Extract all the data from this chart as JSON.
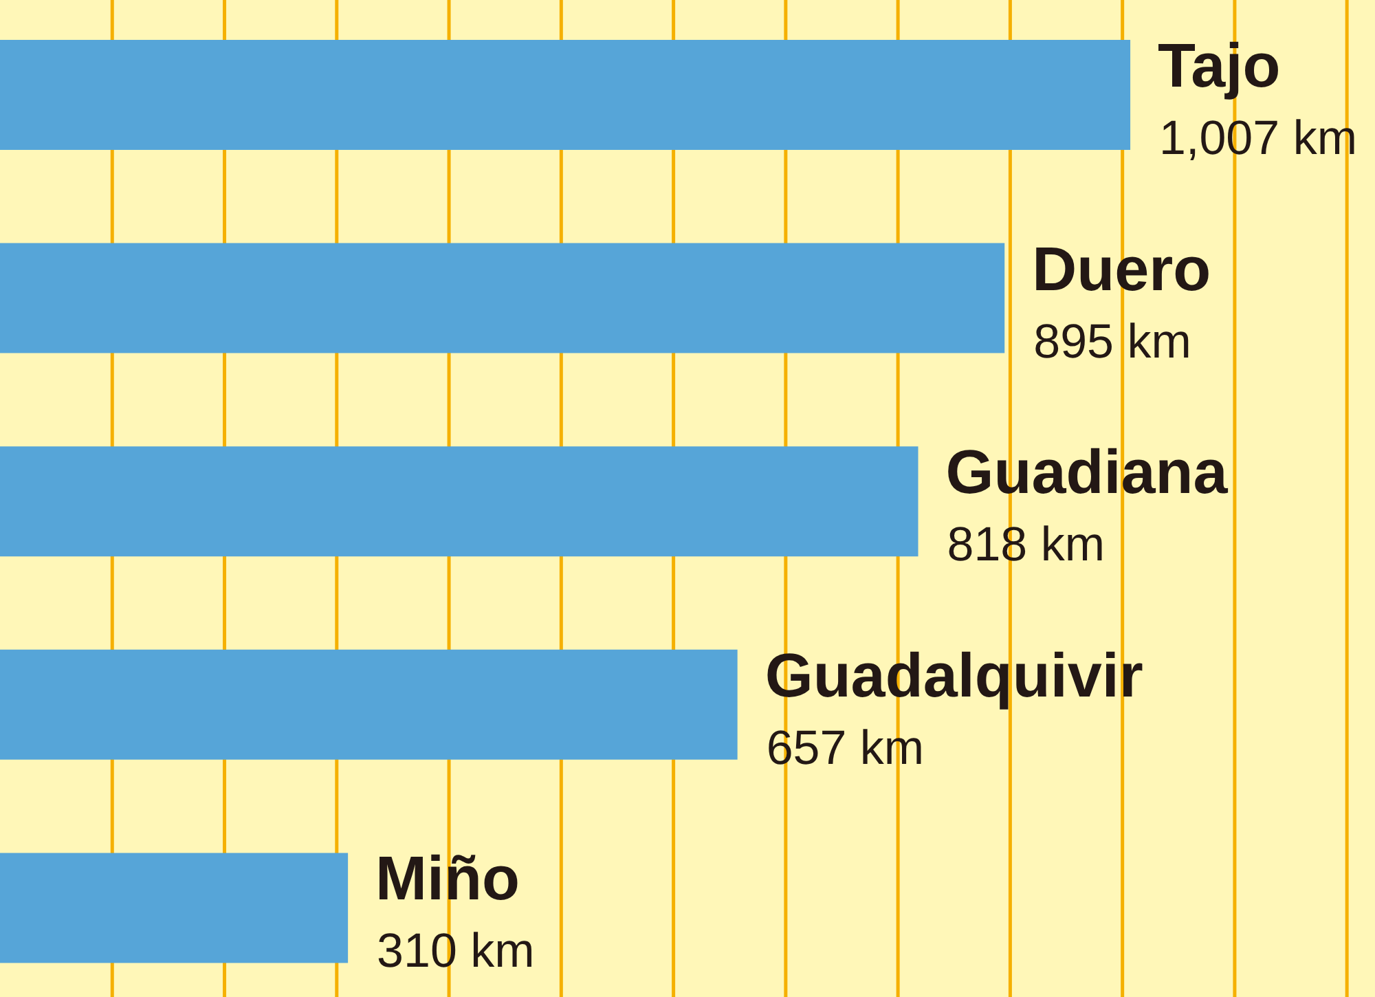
{
  "chart_data": {
    "type": "bar",
    "orientation": "horizontal",
    "categories": [
      "Tajo",
      "Duero",
      "Guadiana",
      "Guadalquivir",
      "Miño"
    ],
    "values": [
      1007,
      895,
      818,
      657,
      310
    ],
    "value_labels": [
      "1,007 km",
      "895 km",
      "818 km",
      "657 km",
      "310 km"
    ],
    "color": "#56a5d8",
    "xlim": [
      0,
      1225
    ],
    "xticks": [
      {
        "value": 100,
        "label": null
      },
      {
        "value": 200,
        "label": null
      },
      {
        "value": 300,
        "label": null
      },
      {
        "value": 400,
        "label": null
      },
      {
        "value": 500,
        "label": null
      },
      {
        "value": 600,
        "label": null
      },
      {
        "value": 700,
        "label": null
      },
      {
        "value": 800,
        "label": null
      },
      {
        "value": 900,
        "label": null
      },
      {
        "value": 1000,
        "label": null
      },
      {
        "value": 1100,
        "label": null
      },
      {
        "value": 1200,
        "label": null
      }
    ],
    "grid": "x",
    "tick_labels": false
  }
}
